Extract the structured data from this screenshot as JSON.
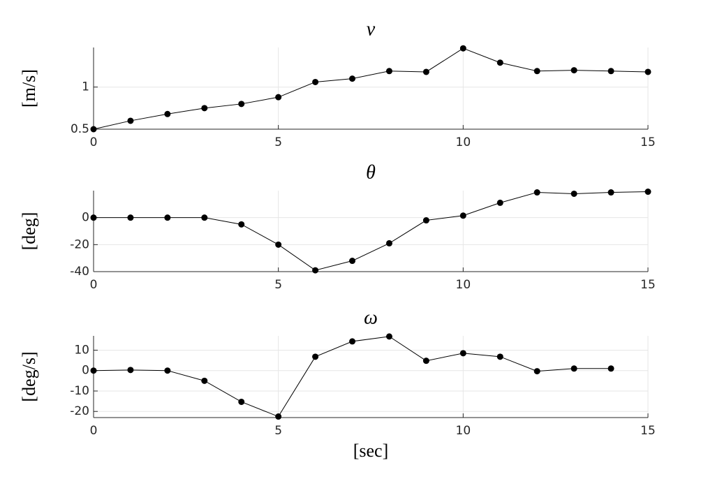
{
  "chart_data": [
    {
      "type": "line",
      "title": "v",
      "ylabel": "[m/s]",
      "x": [
        0,
        1,
        2,
        3,
        4,
        5,
        6,
        7,
        8,
        9,
        10,
        11,
        12,
        13,
        14,
        15
      ],
      "series": [
        {
          "color": "#000000",
          "values": [
            0.5,
            0.6,
            0.68,
            0.75,
            0.8,
            0.88,
            1.06,
            1.1,
            1.19,
            1.18,
            1.46,
            1.29,
            1.19,
            1.2,
            1.19,
            1.18
          ]
        }
      ],
      "xlim": [
        0,
        15
      ],
      "xticks": [
        0,
        5,
        10,
        15
      ],
      "ylim": [
        0.5,
        1.47
      ],
      "yticks": [
        0.5,
        1
      ],
      "grid": true
    },
    {
      "type": "line",
      "title": "θ",
      "ylabel": "[deg]",
      "x": [
        0,
        1,
        2,
        3,
        4,
        5,
        6,
        7,
        8,
        9,
        10,
        11,
        12,
        13,
        14,
        15
      ],
      "series": [
        {
          "color": "#000000",
          "values": [
            0,
            0,
            0,
            0,
            -5,
            -20,
            -39,
            -32,
            -19,
            -2,
            1.5,
            11,
            18.7,
            17.7,
            18.7,
            19.2
          ]
        }
      ],
      "xlim": [
        0,
        15
      ],
      "xticks": [
        0,
        5,
        10,
        15
      ],
      "ylim": [
        -40,
        20
      ],
      "yticks": [
        -40,
        -20,
        0
      ],
      "grid": true
    },
    {
      "type": "line",
      "title": "ω",
      "ylabel": "[deg/s]",
      "xlabel": "[sec]",
      "x": [
        0,
        1,
        2,
        3,
        4,
        5,
        6,
        7,
        8,
        9,
        10,
        11,
        12,
        13,
        14
      ],
      "series": [
        {
          "color": "#000000",
          "values": [
            0,
            0.3,
            0,
            -5,
            -15.3,
            -22.5,
            6.8,
            14.3,
            16.7,
            4.8,
            8.5,
            6.8,
            -0.3,
            1,
            1
          ]
        }
      ],
      "xlim": [
        0,
        15
      ],
      "xticks": [
        0,
        5,
        10,
        15
      ],
      "ylim": [
        -23,
        17
      ],
      "yticks": [
        -20,
        -10,
        0,
        10
      ],
      "grid": true
    }
  ]
}
